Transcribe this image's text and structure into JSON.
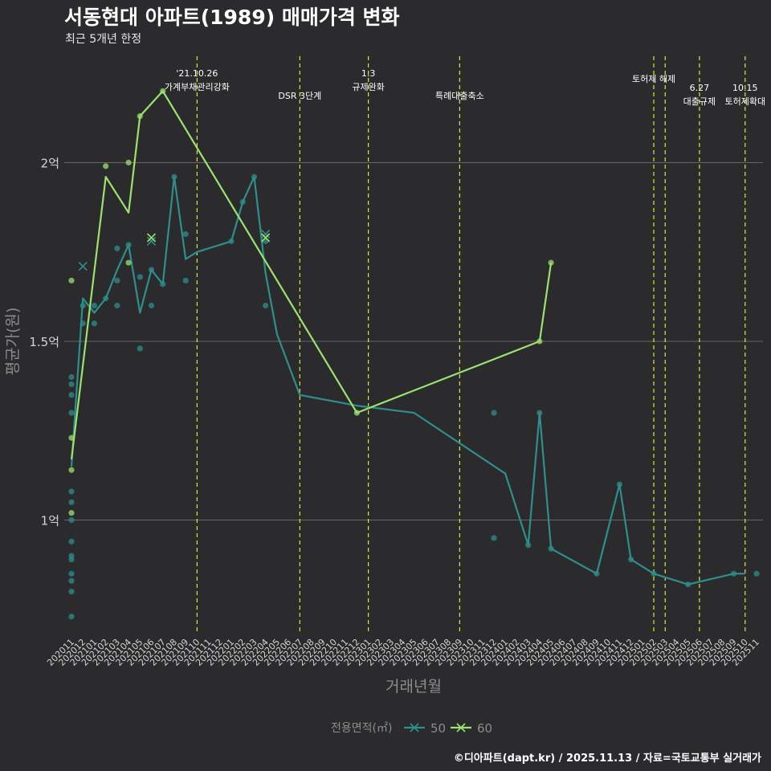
{
  "title": "서동현대 아파트(1989) 매매가격 변화",
  "subtitle": "최근 5개년 한정",
  "caption": "©디아파트(dapt.kr) / 2025.11.13 / 자료=국토교통부 실거래가",
  "colors": {
    "background": "#2b2b2d",
    "grid": "#666666",
    "series_50": "#2e8f8c",
    "series_60": "#9be36e",
    "event_line": "#e4e43c",
    "text": "#ffffff",
    "axis_text": "#d4d4d4",
    "axis_title": "#8c8c8c"
  },
  "chart_data": {
    "type": "line",
    "title": "서동현대 아파트(1989) 매매가격 변화",
    "subtitle": "최근 5개년 한정",
    "xlabel": "거래년월",
    "ylabel": "평균가(원)",
    "ylim": [
      0.68,
      2.32
    ],
    "y_ticks": [
      {
        "value": 1.0,
        "label": "1억"
      },
      {
        "value": 1.5,
        "label": "1.5억"
      },
      {
        "value": 2.0,
        "label": "2억"
      }
    ],
    "x_categories": [
      "202011",
      "202012",
      "202101",
      "202102",
      "202103",
      "202104",
      "202105",
      "202106",
      "202107",
      "202108",
      "202109",
      "202110",
      "202111",
      "202112",
      "202201",
      "202202",
      "202203",
      "202204",
      "202205",
      "202206",
      "202207",
      "202208",
      "202209",
      "202210",
      "202211",
      "202212",
      "202301",
      "202302",
      "202303",
      "202304",
      "202305",
      "202306",
      "202307",
      "202308",
      "202309",
      "202310",
      "202311",
      "202312",
      "202401",
      "202402",
      "202403",
      "202404",
      "202405",
      "202406",
      "202407",
      "202408",
      "202409",
      "202410",
      "202411",
      "202412",
      "202501",
      "202502",
      "202503",
      "202504",
      "202505",
      "202506",
      "202507",
      "202508",
      "202509",
      "202510",
      "202511"
    ],
    "legend_title": "전용면적(㎡)",
    "legend_position": "bottom",
    "series": [
      {
        "name": "50",
        "color": "#2e8f8c",
        "line": [
          [
            "202011",
            1.15
          ],
          [
            "202012",
            1.62
          ],
          [
            "202101",
            1.58
          ],
          [
            "202102",
            1.62
          ],
          [
            "202103",
            1.7
          ],
          [
            "202104",
            1.77
          ],
          [
            "202105",
            1.58
          ],
          [
            "202106",
            1.7
          ],
          [
            "202107",
            1.66
          ],
          [
            "202108",
            1.96
          ],
          [
            "202109",
            1.73
          ],
          [
            "202110",
            1.75
          ],
          [
            "202201",
            1.78
          ],
          [
            "202202",
            1.89
          ],
          [
            "202203",
            1.96
          ],
          [
            "202204",
            1.69
          ],
          [
            "202205",
            1.52
          ],
          [
            "202207",
            1.35
          ],
          [
            "202212",
            1.32
          ],
          [
            "202305",
            1.3
          ],
          [
            "202401",
            1.13
          ],
          [
            "202403",
            0.93
          ],
          [
            "202404",
            1.3
          ],
          [
            "202405",
            0.92
          ],
          [
            "202409",
            0.85
          ],
          [
            "202411",
            1.1
          ],
          [
            "202412",
            0.89
          ],
          [
            "202502",
            0.85
          ],
          [
            "202505",
            0.82
          ],
          [
            "202509",
            0.85
          ],
          [
            "202510",
            0.85
          ]
        ],
        "points": [
          [
            "202011",
            1.4
          ],
          [
            "202011",
            1.38
          ],
          [
            "202011",
            1.35
          ],
          [
            "202011",
            1.3
          ],
          [
            "202011",
            1.08
          ],
          [
            "202011",
            1.05
          ],
          [
            "202011",
            1.0
          ],
          [
            "202011",
            0.94
          ],
          [
            "202011",
            0.9
          ],
          [
            "202011",
            0.89
          ],
          [
            "202011",
            0.85
          ],
          [
            "202011",
            0.83
          ],
          [
            "202011",
            0.8
          ],
          [
            "202011",
            0.73
          ],
          [
            "202012",
            1.6
          ],
          [
            "202012",
            1.55
          ],
          [
            "202101",
            1.6
          ],
          [
            "202101",
            1.55
          ],
          [
            "202102",
            1.62
          ],
          [
            "202103",
            1.76
          ],
          [
            "202103",
            1.67
          ],
          [
            "202103",
            1.6
          ],
          [
            "202104",
            1.77
          ],
          [
            "202105",
            1.68
          ],
          [
            "202105",
            1.48
          ],
          [
            "202106",
            1.7
          ],
          [
            "202106",
            1.6
          ],
          [
            "202107",
            1.66
          ],
          [
            "202108",
            1.96
          ],
          [
            "202109",
            1.8
          ],
          [
            "202109",
            1.67
          ],
          [
            "202201",
            1.78
          ],
          [
            "202202",
            1.89
          ],
          [
            "202203",
            1.96
          ],
          [
            "202204",
            1.78
          ],
          [
            "202204",
            1.6
          ],
          [
            "202312",
            1.3
          ],
          [
            "202312",
            0.95
          ],
          [
            "202403",
            0.93
          ],
          [
            "202404",
            1.3
          ],
          [
            "202405",
            0.92
          ],
          [
            "202409",
            0.85
          ],
          [
            "202411",
            1.1
          ],
          [
            "202412",
            0.89
          ],
          [
            "202502",
            0.85
          ],
          [
            "202505",
            0.82
          ],
          [
            "202509",
            0.85
          ],
          [
            "202511",
            0.85
          ]
        ],
        "cancelled": [
          [
            "202012",
            1.71
          ],
          [
            "202106",
            1.78
          ],
          [
            "202204",
            1.8
          ]
        ]
      },
      {
        "name": "60",
        "color": "#9be36e",
        "line": [
          [
            "202011",
            1.17
          ],
          [
            "202102",
            1.96
          ],
          [
            "202104",
            1.86
          ],
          [
            "202105",
            2.13
          ],
          [
            "202107",
            2.2
          ],
          [
            "202212",
            1.3
          ],
          [
            "202404",
            1.5
          ],
          [
            "202405",
            1.72
          ]
        ],
        "points": [
          [
            "202011",
            1.67
          ],
          [
            "202011",
            1.23
          ],
          [
            "202011",
            1.14
          ],
          [
            "202011",
            1.02
          ],
          [
            "202102",
            1.99
          ],
          [
            "202104",
            2.0
          ],
          [
            "202104",
            1.72
          ],
          [
            "202105",
            2.13
          ],
          [
            "202107",
            2.2
          ],
          [
            "202212",
            1.3
          ],
          [
            "202404",
            1.5
          ],
          [
            "202405",
            1.72
          ]
        ],
        "cancelled": [
          [
            "202106",
            1.79
          ],
          [
            "202204",
            1.79
          ]
        ]
      }
    ],
    "events": [
      {
        "x": "202110",
        "lines": [
          "'21.10.26",
          "가계부채관리강화"
        ],
        "row": 1
      },
      {
        "x": "202207",
        "lines": [
          "DSR 3단계"
        ],
        "row": 2
      },
      {
        "x": "202301",
        "lines": [
          "1.3",
          "규제완화"
        ],
        "row": 1
      },
      {
        "x": "202309",
        "lines": [
          "특례대출축소"
        ],
        "row": 2
      },
      {
        "x": "202502",
        "lines": [
          "토허제 해제"
        ],
        "row": 1
      },
      {
        "x": "202503",
        "lines": [],
        "row": 0
      },
      {
        "x": "202506",
        "lines": [
          "6.27",
          "대출규제"
        ],
        "row": 2
      },
      {
        "x": "202510",
        "lines": [
          "10.15",
          "토허제확대"
        ],
        "row": 2
      }
    ]
  }
}
